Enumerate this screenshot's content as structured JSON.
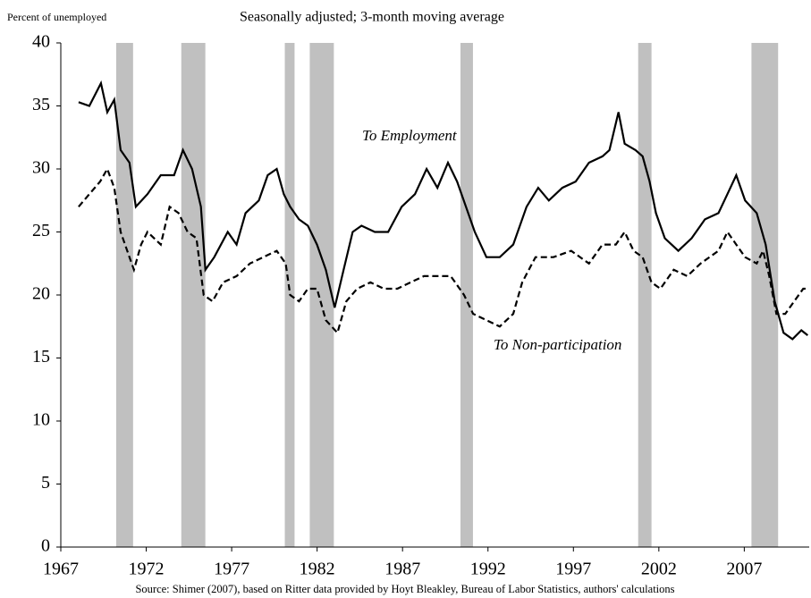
{
  "chart_data": {
    "type": "line",
    "ylabel": "Percent of unemployed",
    "subtitle": "Seasonally adjusted; 3-month moving average",
    "source": "Source: Shimer (2007), based on Ritter data provided by Hoyt Bleakley, Bureau of Labor Statistics, authors' calculations",
    "xlim": [
      1967,
      2010.8
    ],
    "xticks": [
      1967,
      1972,
      1977,
      1982,
      1987,
      1992,
      1997,
      2002,
      2007
    ],
    "ylim": [
      0,
      40
    ],
    "yticks": [
      0,
      5,
      10,
      15,
      20,
      25,
      30,
      35,
      40
    ],
    "recessions": [
      [
        1970.24,
        1971.23
      ],
      [
        1974.05,
        1975.46
      ],
      [
        1980.11,
        1980.68
      ],
      [
        1981.57,
        1982.98
      ],
      [
        1990.39,
        1991.12
      ],
      [
        2000.79,
        2001.57
      ],
      [
        2007.42,
        2008.98
      ]
    ],
    "recession_color": "#c0c0c0",
    "series": [
      {
        "name": "To Employment",
        "color": "#000000",
        "dash": false,
        "x": [
          1968.04,
          1968.67,
          1969.35,
          1969.72,
          1970.13,
          1970.5,
          1971.02,
          1971.39,
          1972.07,
          1972.85,
          1973.63,
          1974.15,
          1974.68,
          1975.2,
          1975.46,
          1975.98,
          1976.77,
          1977.29,
          1977.81,
          1978.59,
          1979.11,
          1979.64,
          1980.05,
          1980.42,
          1980.94,
          1981.46,
          1981.99,
          1982.51,
          1983.03,
          1983.55,
          1984.08,
          1984.6,
          1985.38,
          1986.16,
          1986.95,
          1987.73,
          1988.41,
          1989.04,
          1989.66,
          1990.19,
          1990.71,
          1991.23,
          1991.91,
          1992.69,
          1993.48,
          1994.26,
          1994.94,
          1995.56,
          1996.35,
          1997.13,
          1997.91,
          1998.7,
          1999.11,
          1999.64,
          2000.0,
          2000.63,
          2001.05,
          2001.46,
          2001.83,
          2002.35,
          2003.14,
          2003.92,
          2004.7,
          2005.49,
          2006.01,
          2006.53,
          2007.05,
          2007.73,
          2008.25,
          2008.78,
          2009.3,
          2009.82,
          2010.34,
          2010.71
        ],
        "values": [
          35.3,
          35,
          36.8,
          34.5,
          35.5,
          31.5,
          30.5,
          27,
          28,
          29.5,
          29.5,
          31.5,
          30,
          27,
          22,
          23,
          25,
          24,
          26.5,
          27.5,
          29.5,
          30,
          28,
          27,
          26,
          25.5,
          24,
          22,
          19,
          22,
          25,
          25.5,
          25,
          25,
          27,
          28,
          30,
          28.5,
          30.5,
          29,
          27,
          25,
          23,
          23,
          24,
          27,
          28.5,
          27.5,
          28.5,
          29,
          30.5,
          31,
          31.5,
          34.5,
          32,
          31.5,
          31,
          29,
          26.5,
          24.5,
          23.5,
          24.5,
          26,
          26.5,
          28,
          29.5,
          27.5,
          26.5,
          24,
          19.5,
          17,
          16.5,
          17.2,
          16.8
        ]
      },
      {
        "name": "To Non-participation",
        "color": "#000000",
        "dash": true,
        "x": [
          1968.04,
          1968.67,
          1969.3,
          1969.72,
          1970.13,
          1970.5,
          1971.02,
          1971.28,
          1971.7,
          1972.07,
          1972.85,
          1973.37,
          1973.89,
          1974.42,
          1974.94,
          1975.36,
          1975.88,
          1976.5,
          1977.29,
          1978.07,
          1978.85,
          1979.64,
          1980.16,
          1980.42,
          1980.94,
          1981.46,
          1981.99,
          1982.51,
          1983.19,
          1983.71,
          1984.34,
          1985.12,
          1985.9,
          1986.69,
          1987.47,
          1988.25,
          1989.04,
          1989.82,
          1990.6,
          1991.13,
          1991.91,
          1992.69,
          1993.48,
          1994.0,
          1994.78,
          1995.83,
          1996.87,
          1997.91,
          1998.7,
          1999.48,
          2000.0,
          2000.52,
          2001.05,
          2001.57,
          2002.09,
          2002.87,
          2003.66,
          2004.44,
          2005.49,
          2006.01,
          2006.53,
          2007.05,
          2007.73,
          2008.1,
          2008.46,
          2008.88,
          2009.4,
          2009.92,
          2010.45,
          2010.71
        ],
        "values": [
          27,
          28,
          29,
          30,
          28.5,
          25,
          23,
          22,
          24,
          25,
          24,
          27,
          26.5,
          25,
          24.5,
          20,
          19.5,
          21,
          21.5,
          22.5,
          23,
          23.5,
          22.5,
          20,
          19.5,
          20.5,
          20.5,
          18,
          17,
          19.5,
          20.5,
          21,
          20.5,
          20.5,
          21,
          21.5,
          21.5,
          21.5,
          20,
          18.5,
          18,
          17.5,
          18.5,
          21,
          23,
          23,
          23.5,
          22.5,
          24,
          24,
          25,
          23.5,
          23,
          21,
          20.5,
          22,
          21.5,
          22.5,
          23.5,
          25,
          24,
          23,
          22.5,
          23.5,
          21.5,
          18.5,
          18.5,
          19.5,
          20.5,
          20.5
        ]
      }
    ]
  }
}
